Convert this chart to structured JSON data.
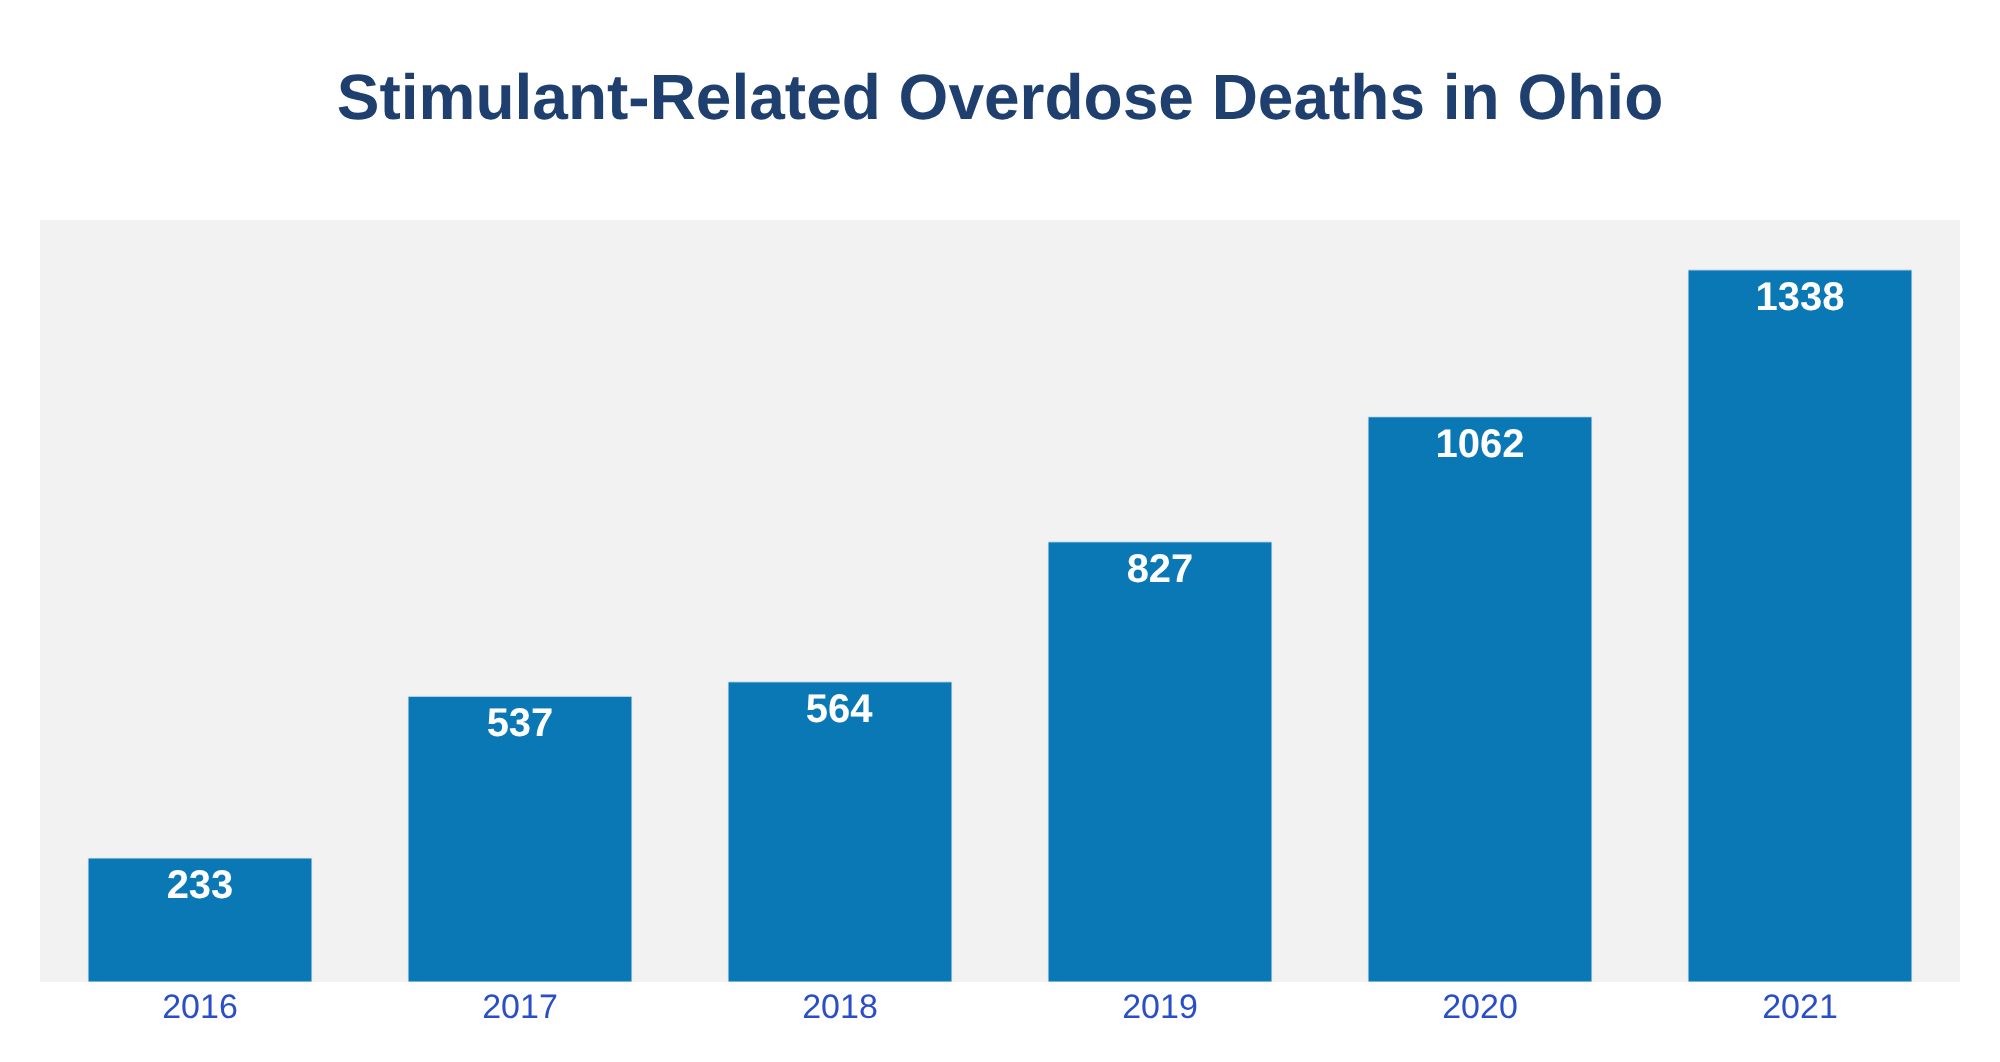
{
  "chart_data": {
    "type": "bar",
    "title": "Stimulant-Related Overdose Deaths in Ohio",
    "categories": [
      "2016",
      "2017",
      "2018",
      "2019",
      "2020",
      "2021"
    ],
    "values": [
      233,
      537,
      564,
      827,
      1062,
      1338
    ],
    "color": "#0a78b4",
    "data_labels": true,
    "grid": false,
    "legend": false,
    "tick_labels": "x"
  }
}
